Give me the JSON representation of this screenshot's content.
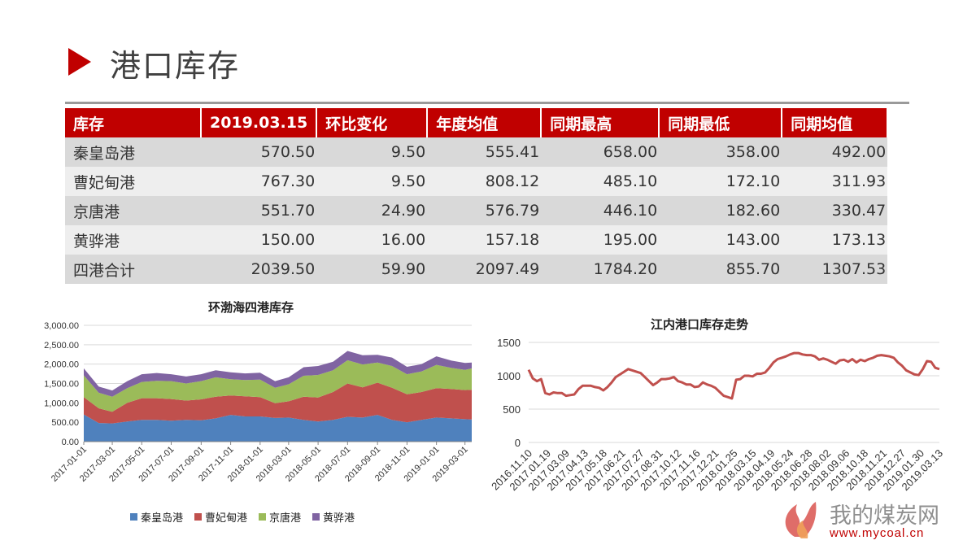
{
  "page": {
    "title": "港口库存"
  },
  "table": {
    "headers": [
      "库存",
      "2019.03.15",
      "环比变化",
      "年度均值",
      "同期最高",
      "同期最低",
      "同期均值"
    ],
    "rows": [
      [
        "秦皇岛港",
        "570.50",
        "9.50",
        "555.41",
        "658.00",
        "358.00",
        "492.00"
      ],
      [
        "曹妃甸港",
        "767.30",
        "9.50",
        "808.12",
        "485.10",
        "172.10",
        "311.93"
      ],
      [
        "京唐港",
        "551.70",
        "24.90",
        "576.79",
        "446.10",
        "182.60",
        "330.47"
      ],
      [
        "黄骅港",
        "150.00",
        "16.00",
        "157.18",
        "195.00",
        "143.00",
        "173.13"
      ],
      [
        "四港合计",
        "2039.50",
        "59.90",
        "2097.49",
        "1784.20",
        "855.70",
        "1307.53"
      ]
    ]
  },
  "colors": {
    "accent": "#c00000",
    "qinhuangdao": "#4f81bd",
    "caofeidian": "#c0504d",
    "jingtang": "#9bbb59",
    "huanghua": "#8064a2",
    "jiangnei": "#c0504d"
  },
  "chart_data": [
    {
      "type": "area",
      "stacked": true,
      "title": "环渤海四港库存",
      "ylim": [
        0,
        3000
      ],
      "yticks": [
        "0.00",
        "500.00",
        "1,000.00",
        "1,500.00",
        "2,000.00",
        "2,500.00",
        "3,000.00"
      ],
      "xticks": [
        "2017-01-01",
        "2017-03-01",
        "2017-05-01",
        "2017-07-01",
        "2017-09-01",
        "2017-11-01",
        "2018-01-01",
        "2018-03-01",
        "2018-05-01",
        "2018-07-01",
        "2018-09-01",
        "2018-11-01",
        "2019-01-01",
        "2019-03-01"
      ],
      "x": [
        "2017-01-01",
        "2017-02-01",
        "2017-03-01",
        "2017-04-01",
        "2017-05-01",
        "2017-06-01",
        "2017-07-01",
        "2017-08-01",
        "2017-09-01",
        "2017-10-01",
        "2017-11-01",
        "2017-12-01",
        "2018-01-01",
        "2018-02-01",
        "2018-03-01",
        "2018-04-01",
        "2018-05-01",
        "2018-06-01",
        "2018-07-01",
        "2018-08-01",
        "2018-09-01",
        "2018-10-01",
        "2018-11-01",
        "2018-12-01",
        "2019-01-01",
        "2019-02-01",
        "2019-03-01",
        "2019-03-15"
      ],
      "series": [
        {
          "name": "秦皇岛港",
          "values": [
            700,
            480,
            470,
            520,
            560,
            560,
            540,
            560,
            550,
            600,
            690,
            650,
            650,
            610,
            620,
            560,
            520,
            560,
            640,
            620,
            690,
            560,
            500,
            560,
            620,
            600,
            580,
            570
          ]
        },
        {
          "name": "曹妃甸港",
          "values": [
            450,
            380,
            300,
            480,
            560,
            560,
            560,
            500,
            540,
            560,
            500,
            520,
            500,
            380,
            420,
            600,
            620,
            720,
            860,
            780,
            830,
            830,
            720,
            720,
            760,
            760,
            750,
            767
          ]
        },
        {
          "name": "京唐港",
          "values": [
            560,
            400,
            390,
            380,
            420,
            450,
            460,
            440,
            470,
            500,
            420,
            420,
            450,
            400,
            440,
            540,
            580,
            560,
            600,
            590,
            520,
            560,
            520,
            530,
            600,
            540,
            520,
            552
          ]
        },
        {
          "name": "黄骅港",
          "values": [
            180,
            160,
            160,
            180,
            200,
            200,
            180,
            180,
            180,
            180,
            180,
            170,
            180,
            170,
            180,
            220,
            230,
            220,
            240,
            240,
            200,
            220,
            190,
            190,
            220,
            190,
            180,
            150
          ]
        }
      ]
    },
    {
      "type": "line",
      "title": "江内港口库存走势",
      "ylim": [
        0,
        1500
      ],
      "yticks": [
        "0",
        "500",
        "1000",
        "1500"
      ],
      "xticks": [
        "2016.11.10",
        "2017.01.19",
        "2017.03.09",
        "2017.04.13",
        "2017.05.18",
        "2017.06.21",
        "2017.07.27",
        "2017.08.31",
        "2017.10.12",
        "2017.11.16",
        "2017.12.21",
        "2018.01.25",
        "2018.03.15",
        "2018.04.19",
        "2018.05.24",
        "2018.06.28",
        "2018.08.02",
        "2018.09.06",
        "2018.10.18",
        "2018.11.21",
        "2018.12.27",
        "2019.01.30",
        "2019.03.13"
      ],
      "series": [
        {
          "name": "",
          "values": [
            1090,
            960,
            920,
            950,
            740,
            720,
            750,
            740,
            740,
            700,
            710,
            720,
            800,
            850,
            850,
            850,
            830,
            820,
            780,
            830,
            900,
            980,
            1020,
            1060,
            1100,
            1080,
            1060,
            1040,
            980,
            920,
            860,
            900,
            950,
            950,
            960,
            980,
            920,
            900,
            870,
            870,
            830,
            840,
            900,
            870,
            850,
            820,
            760,
            700,
            680,
            660,
            940,
            950,
            1000,
            1000,
            990,
            1030,
            1030,
            1050,
            1120,
            1200,
            1250,
            1270,
            1290,
            1320,
            1340,
            1340,
            1320,
            1310,
            1310,
            1290,
            1240,
            1260,
            1240,
            1210,
            1180,
            1230,
            1240,
            1210,
            1250,
            1200,
            1240,
            1220,
            1250,
            1270,
            1300,
            1310,
            1300,
            1290,
            1270,
            1200,
            1150,
            1080,
            1050,
            1020,
            1010,
            1100,
            1220,
            1210,
            1120,
            1100
          ]
        }
      ]
    }
  ],
  "legend": [
    "秦皇岛港",
    "曹妃甸港",
    "京唐港",
    "黄骅港"
  ],
  "watermark": {
    "name": "我的煤炭网",
    "url": "www.mycoal.cn"
  }
}
